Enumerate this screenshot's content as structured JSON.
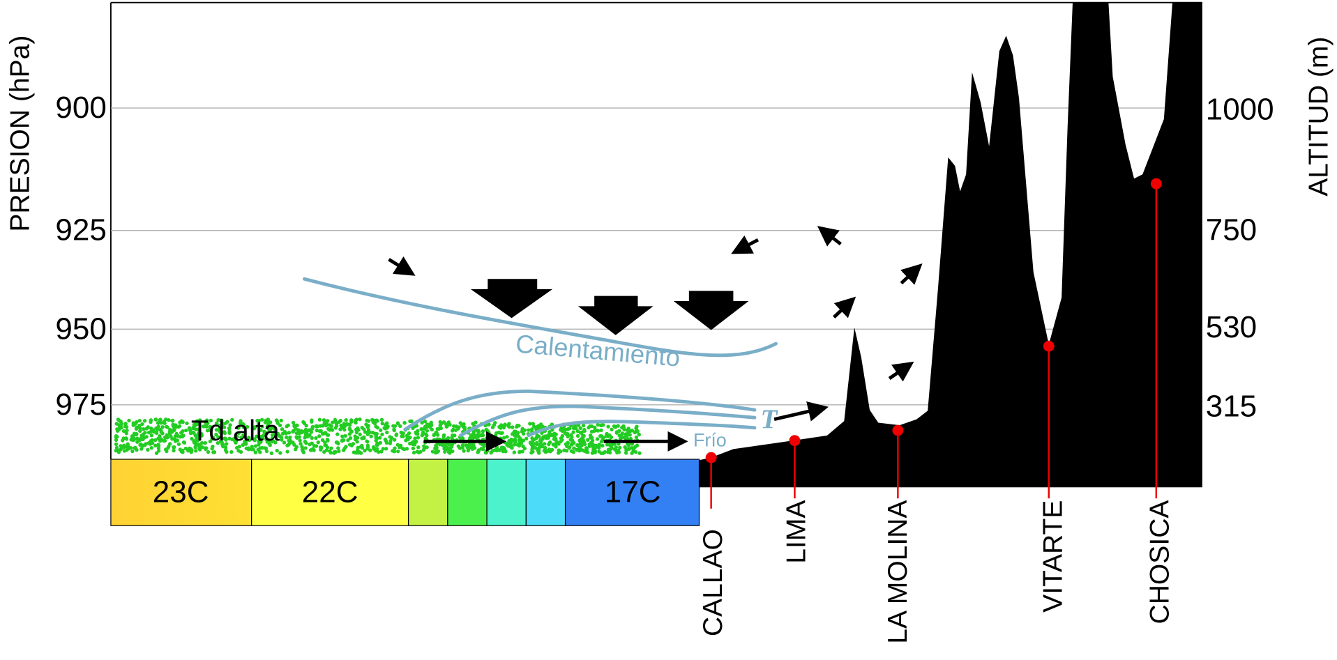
{
  "left_axis": {
    "label": "PRESION (hPa)",
    "ticks": [
      "900",
      "925",
      "950",
      "975"
    ]
  },
  "right_axis": {
    "label": "ALTITUD (m)",
    "ticks": [
      "1000",
      "750",
      "530",
      "315"
    ]
  },
  "sst_labels": [
    "23C",
    "22C",
    "17C"
  ],
  "stations": [
    "CALLAO",
    "LIMA",
    "LA MOLINA",
    "VITARTE",
    "CHOSICA"
  ],
  "annotations": {
    "warming": "Calentamiento",
    "cold": "Frío",
    "dewpoint": "Td alta",
    "temperature": "T"
  }
}
